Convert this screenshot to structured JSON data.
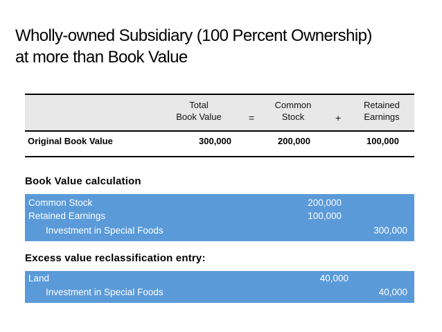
{
  "title": {
    "line1": "Wholly-owned Subsidiary (100 Percent Ownership)",
    "line2": "at more than Book Value"
  },
  "book_value_table": {
    "headers": {
      "total_line1": "Total",
      "total_line2": "Book Value",
      "equals": "=",
      "common_line1": "Common",
      "common_line2": "Stock",
      "plus": "+",
      "retained_line1": "Retained",
      "retained_line2": "Earnings"
    },
    "row": {
      "label": "Original Book Value",
      "total": "300,000",
      "common": "200,000",
      "retained": "100,000"
    }
  },
  "book_value_calc": {
    "label": "Book Value calculation",
    "rows": [
      {
        "account": "Common Stock",
        "debit": "200,000",
        "credit": ""
      },
      {
        "account": "Retained Earnings",
        "debit": "100,000",
        "credit": ""
      },
      {
        "account": "Investment in Special Foods",
        "debit": "",
        "credit": "300,000"
      }
    ]
  },
  "excess_entry": {
    "label": "Excess value reclassification entry:",
    "rows": [
      {
        "account": "Land",
        "debit": "40,000",
        "credit": ""
      },
      {
        "account": "Investment in Special Foods",
        "debit": "",
        "credit": "40,000"
      }
    ]
  },
  "colors": {
    "entry_box": "#5a9ad8",
    "header_band": "#e8e8e8"
  }
}
